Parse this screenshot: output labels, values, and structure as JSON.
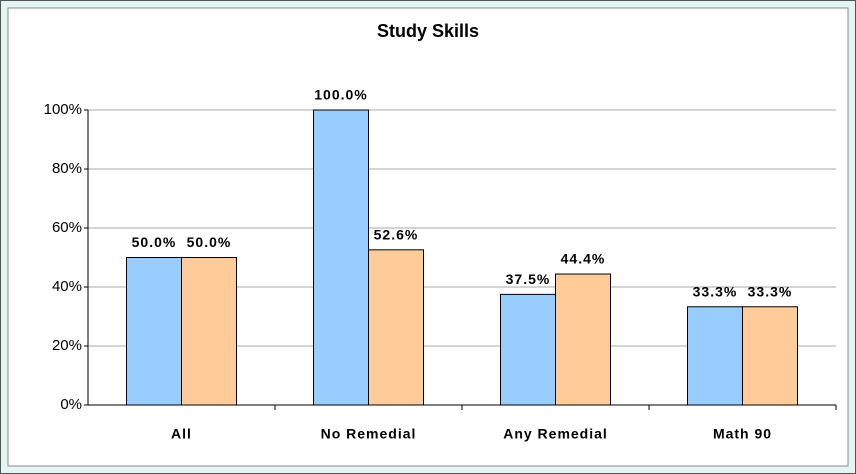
{
  "chart_data": {
    "type": "bar",
    "title": "Study Skills",
    "categories": [
      "All",
      "No Remedial",
      "Any Remedial",
      "Math 90"
    ],
    "series": [
      {
        "color": "#99ccff",
        "values": [
          50,
          100,
          37.5,
          33.3
        ],
        "value_labels": [
          "50.0%",
          "100.0%",
          "37.5%",
          "33.3%"
        ]
      },
      {
        "color": "#ffcc99",
        "values": [
          50,
          52.6,
          44.4,
          33.3
        ],
        "value_labels": [
          "50.0%",
          "52.6%",
          "44.4%",
          "33.3%"
        ]
      }
    ],
    "ylim": [
      0,
      100
    ],
    "yticks": [
      {
        "value": 0,
        "label": "0%"
      },
      {
        "value": 20,
        "label": "20%"
      },
      {
        "value": 40,
        "label": "40%"
      },
      {
        "value": 60,
        "label": "60%"
      },
      {
        "value": 80,
        "label": "80%"
      },
      {
        "value": 100,
        "label": "100%"
      }
    ],
    "grid": true
  }
}
